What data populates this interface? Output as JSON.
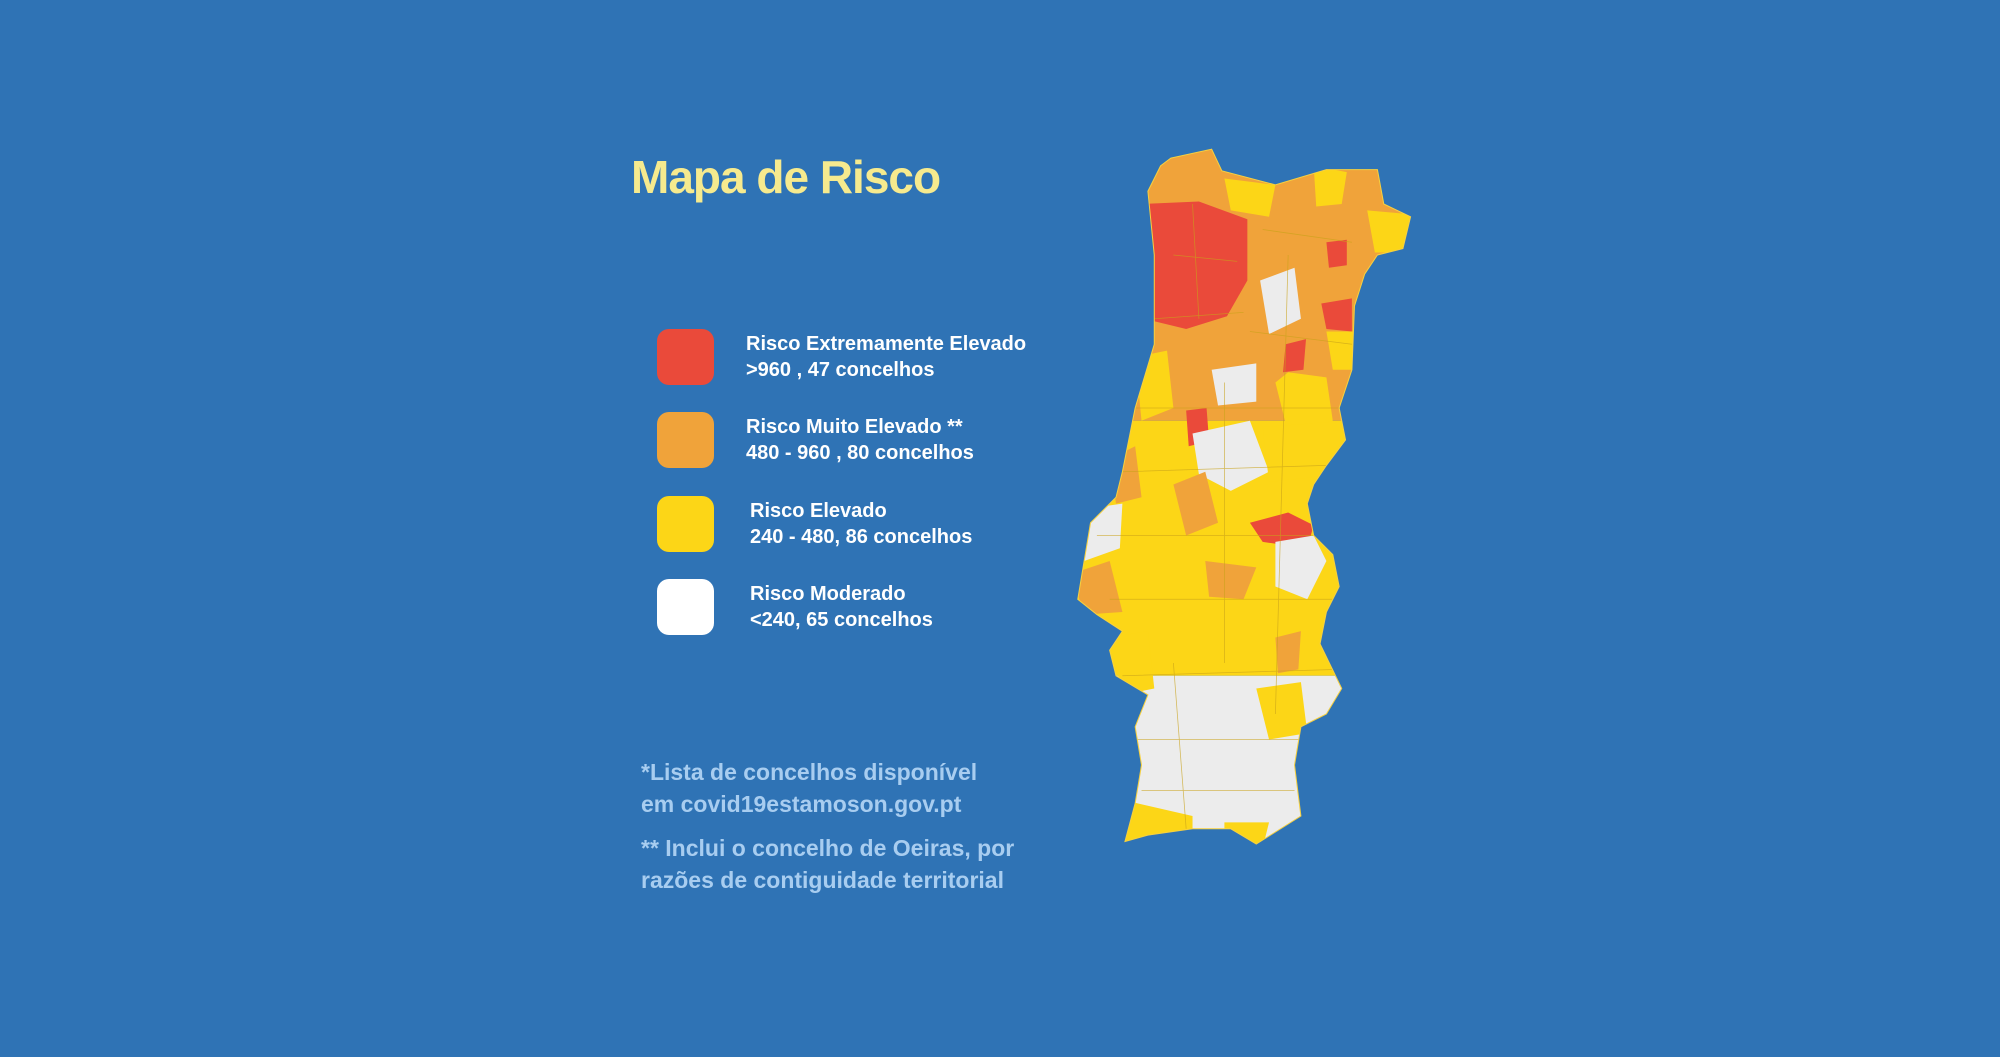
{
  "title": "Mapa de Risco",
  "legend": [
    {
      "label": "Risco Extremamente Elevado",
      "range": ">960 , 47 concelhos",
      "color": "#ea4a3a"
    },
    {
      "label": "Risco Muito Elevado  **",
      "range": "480 - 960 , 80 concelhos",
      "color": "#f0a33a"
    },
    {
      "label": "Risco Elevado",
      "range": "240 - 480, 86 concelhos",
      "color": "#fcd617"
    },
    {
      "label": "Risco Moderado",
      "range": "<240, 65 concelhos",
      "color": "#ffffff"
    }
  ],
  "notes": [
    {
      "line1": "*Lista de concelhos disponível",
      "line2": "em covid19estamoson.gov.pt"
    },
    {
      "line1": "** Inclui o concelho de Oeiras, por",
      "line2": "razões de contiguidade territorial"
    }
  ],
  "colors": {
    "background": "#2f73b5",
    "title": "#f6ea8e",
    "notes": "#a8cdf0",
    "map_moderate": "#ececec"
  }
}
